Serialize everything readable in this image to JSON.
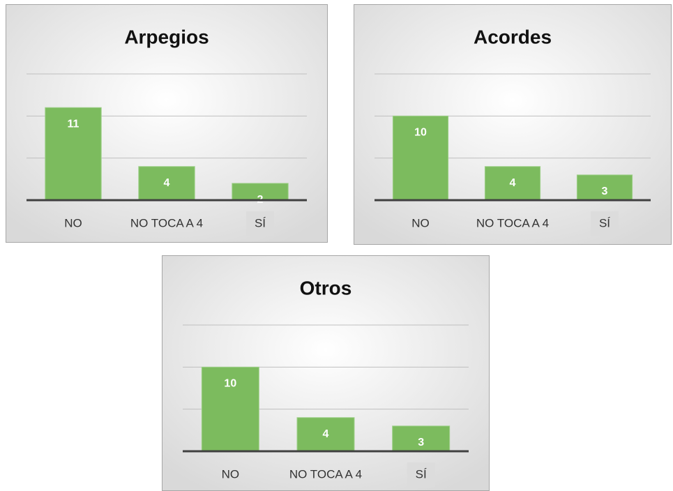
{
  "chart_data": [
    {
      "type": "bar",
      "title": "Arpegios",
      "categories": [
        "NO",
        "NO TOCA A 4",
        "SÍ"
      ],
      "values": [
        11,
        4,
        2
      ],
      "color": "#7cbb5e",
      "ylim": [
        0,
        15
      ],
      "yticks": [
        0,
        5,
        10,
        15
      ],
      "grid": true
    },
    {
      "type": "bar",
      "title": "Acordes",
      "categories": [
        "NO",
        "NO TOCA A 4",
        "SÍ"
      ],
      "values": [
        10,
        4,
        3
      ],
      "color": "#7cbb5e",
      "ylim": [
        0,
        15
      ],
      "yticks": [
        0,
        5,
        10,
        15
      ],
      "grid": true
    },
    {
      "type": "bar",
      "title": "Otros",
      "categories": [
        "NO",
        "NO TOCA A 4",
        "SÍ"
      ],
      "values": [
        10,
        4,
        3
      ],
      "color": "#7cbb5e",
      "ylim": [
        0,
        15
      ],
      "yticks": [
        0,
        5,
        10,
        15
      ],
      "grid": true
    }
  ]
}
